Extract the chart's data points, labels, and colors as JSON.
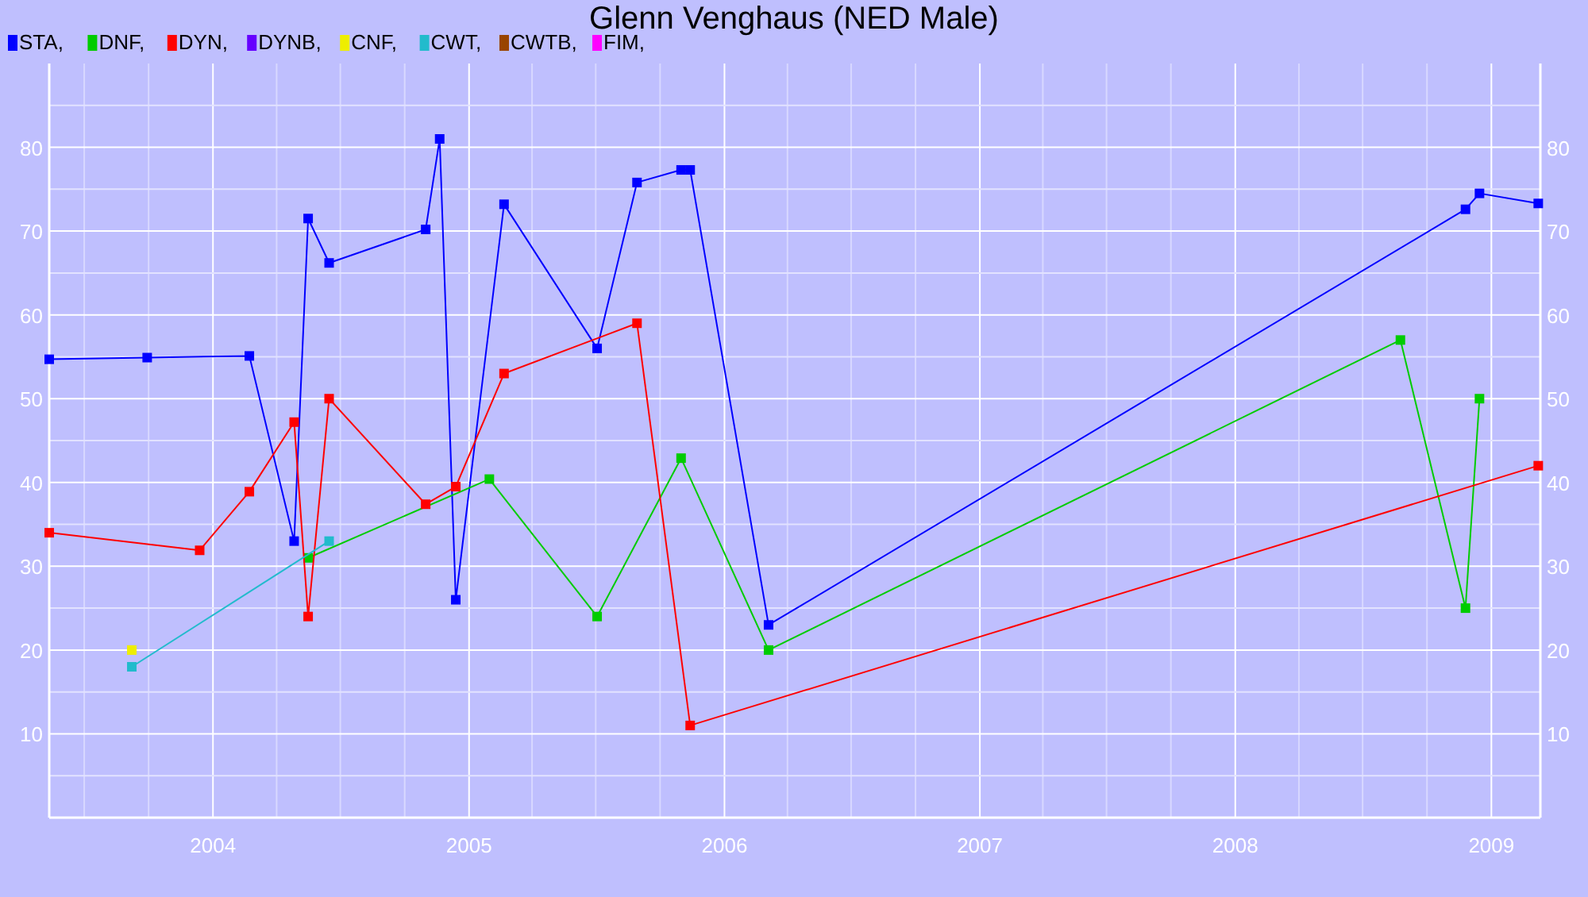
{
  "chart_data": {
    "type": "line",
    "title": "Glenn Venghaus (NED Male)",
    "legend": "top left",
    "marker": "square",
    "line_style": "solid",
    "grid": true,
    "xlim": [
      "2003-05-12",
      "2009-03-12"
    ],
    "xticks": [
      {
        "value": "2003-07-01",
        "label": null
      },
      {
        "value": "2003-10-01",
        "label": null
      },
      {
        "value": "2004-01-01",
        "label": "2004"
      },
      {
        "value": "2004-04-01",
        "label": null
      },
      {
        "value": "2004-07-01",
        "label": null
      },
      {
        "value": "2004-10-01",
        "label": null
      },
      {
        "value": "2005-01-01",
        "label": "2005"
      },
      {
        "value": "2005-04-01",
        "label": null
      },
      {
        "value": "2005-07-01",
        "label": null
      },
      {
        "value": "2005-10-01",
        "label": null
      },
      {
        "value": "2006-01-01",
        "label": "2006"
      },
      {
        "value": "2006-04-01",
        "label": null
      },
      {
        "value": "2006-07-01",
        "label": null
      },
      {
        "value": "2006-10-01",
        "label": null
      },
      {
        "value": "2007-01-01",
        "label": "2007"
      },
      {
        "value": "2007-04-01",
        "label": null
      },
      {
        "value": "2007-07-01",
        "label": null
      },
      {
        "value": "2007-10-01",
        "label": null
      },
      {
        "value": "2008-01-01",
        "label": "2008"
      },
      {
        "value": "2008-04-01",
        "label": null
      },
      {
        "value": "2008-07-01",
        "label": null
      },
      {
        "value": "2008-10-01",
        "label": null
      },
      {
        "value": "2009-01-01",
        "label": "2009"
      }
    ],
    "ylim": [
      0,
      90
    ],
    "yticks": [
      {
        "value": 5,
        "label": null
      },
      10,
      {
        "value": 15,
        "label": null
      },
      20,
      {
        "value": 25,
        "label": null
      },
      30,
      {
        "value": 35,
        "label": null
      },
      40,
      {
        "value": 45,
        "label": null
      },
      50,
      {
        "value": 55,
        "label": null
      },
      60,
      {
        "value": 65,
        "label": null
      },
      70,
      {
        "value": 75,
        "label": null
      },
      80,
      {
        "value": 85,
        "label": null
      }
    ],
    "y2lim": [
      0,
      90
    ],
    "y2ticks": [
      10,
      20,
      30,
      40,
      50,
      60,
      70,
      80
    ],
    "series": [
      {
        "name": "STA,",
        "color": "#0000ff",
        "x": [
          "2003-05-12",
          "2003-09-29",
          "2004-02-22",
          "2004-04-26",
          "2004-05-16",
          "2004-06-15",
          "2004-10-31",
          "2004-11-20",
          "2004-12-13",
          "2005-02-20",
          "2005-07-03",
          "2005-08-29",
          "2005-10-31",
          "2005-11-13",
          "2006-03-05",
          "2008-11-25",
          "2008-12-15",
          "2009-03-09"
        ],
        "values": [
          54.7,
          54.9,
          55.1,
          33,
          71.5,
          66.2,
          70.2,
          81,
          26,
          73.2,
          56,
          75.8,
          77.3,
          77.3,
          23,
          72.6,
          74.5,
          73.3
        ]
      },
      {
        "name": "DNF,",
        "color": "#00cc00",
        "x": [
          "2004-05-16",
          "2005-01-30",
          "2005-07-03",
          "2005-10-31",
          "2006-03-05",
          "2008-08-24",
          "2008-11-25",
          "2008-12-15"
        ],
        "values": [
          31,
          40.4,
          24,
          42.9,
          20,
          57,
          25,
          50
        ]
      },
      {
        "name": "DYN,",
        "color": "#ff0000",
        "x": [
          "2003-05-12",
          "2003-12-13",
          "2004-02-22",
          "2004-04-26",
          "2004-05-16",
          "2004-06-15",
          "2004-10-31",
          "2004-12-13",
          "2005-02-20",
          "2005-08-29",
          "2005-11-13",
          "2009-03-09"
        ],
        "values": [
          34,
          31.9,
          38.9,
          47.2,
          24,
          50,
          37.4,
          39.5,
          53,
          59,
          11,
          42
        ]
      },
      {
        "name": "DYNB,",
        "color": "#6600ff"
      },
      {
        "name": "CNF,",
        "color": "#eeee00",
        "x": [
          "2003-09-07"
        ],
        "values": [
          20
        ]
      },
      {
        "name": "CWT,",
        "color": "#22bbcc",
        "x": [
          "2003-09-07",
          "2004-06-15"
        ],
        "values": [
          18,
          33
        ]
      },
      {
        "name": "CWTB,",
        "color": "#994400"
      },
      {
        "name": "FIM,",
        "color": "#ff00ff"
      }
    ]
  }
}
